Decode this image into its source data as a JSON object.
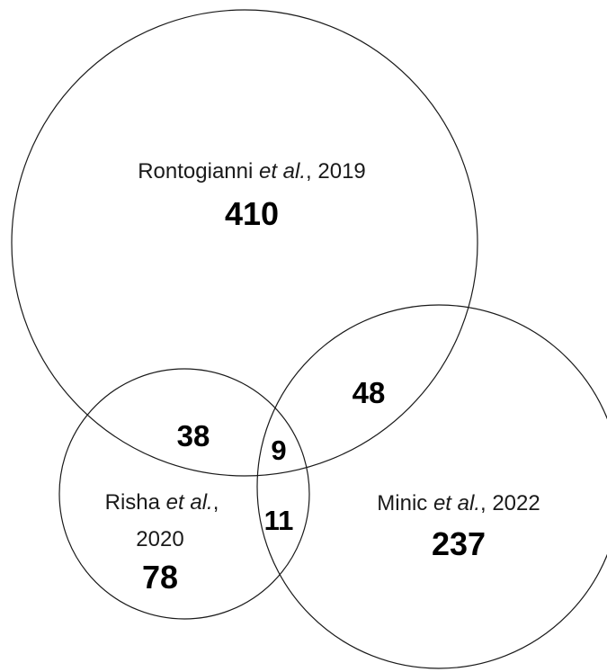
{
  "sets": {
    "rontogianni": {
      "author": "Rontogianni",
      "etal": "et al.",
      "year": ", 2019",
      "only": "410"
    },
    "risha": {
      "author": "Risha",
      "etal": "et al.",
      "comma": ",",
      "year": "2020",
      "only": "78"
    },
    "minic": {
      "author": "Minic",
      "etal": "et al.",
      "year": ", 2022",
      "only": "237"
    }
  },
  "intersections": {
    "rontogianni_risha": "38",
    "rontogianni_minic": "48",
    "risha_minic": "11",
    "all_three": "9"
  },
  "colors": {
    "stroke": "#1a1a1a",
    "text": "#000000",
    "background": "#ffffff"
  }
}
